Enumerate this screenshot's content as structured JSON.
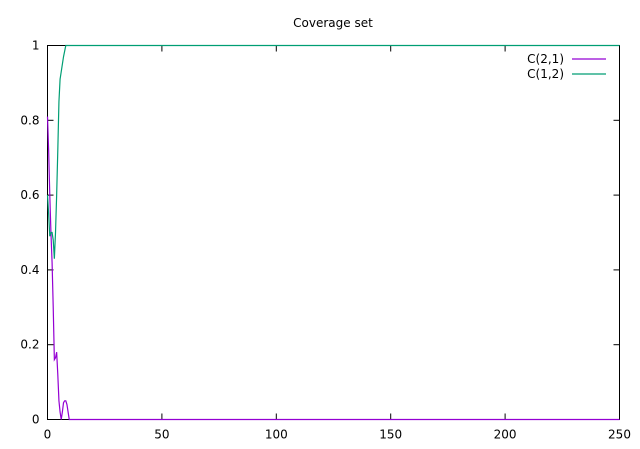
{
  "chart_data": {
    "type": "line",
    "title": "Coverage set",
    "xlabel": "",
    "ylabel": "",
    "xlim": [
      0,
      250
    ],
    "ylim": [
      0,
      1
    ],
    "grid": false,
    "legend_position": "top-right",
    "x_ticks": [
      0,
      50,
      100,
      150,
      200,
      250
    ],
    "y_ticks": [
      0,
      0.2,
      0.4,
      0.6,
      0.8,
      1
    ],
    "series": [
      {
        "name": "C(2,1)",
        "color": "#9400d3",
        "x": [
          0,
          0.5,
          1,
          1.5,
          2,
          2.5,
          3,
          3.5,
          4,
          4.5,
          5,
          5.5,
          6,
          6.5,
          7,
          7.5,
          8,
          8.5,
          9,
          9.5,
          10,
          250
        ],
        "y": [
          0.81,
          0.72,
          0.6,
          0.5,
          0.42,
          0.3,
          0.16,
          0.165,
          0.18,
          0.12,
          0.05,
          0.02,
          0,
          0.02,
          0.045,
          0.05,
          0.05,
          0.04,
          0.02,
          0,
          0,
          0
        ]
      },
      {
        "name": "C(1,2)",
        "color": "#009e73",
        "x": [
          0,
          0.5,
          1,
          1.5,
          2,
          2.5,
          3,
          3.5,
          4,
          4.5,
          5,
          5.5,
          6,
          7,
          8,
          9,
          10,
          250
        ],
        "y": [
          0.6,
          0.55,
          0.49,
          0.5,
          0.5,
          0.48,
          0.43,
          0.5,
          0.6,
          0.72,
          0.85,
          0.91,
          0.93,
          0.97,
          1,
          1,
          1,
          1
        ]
      }
    ]
  }
}
